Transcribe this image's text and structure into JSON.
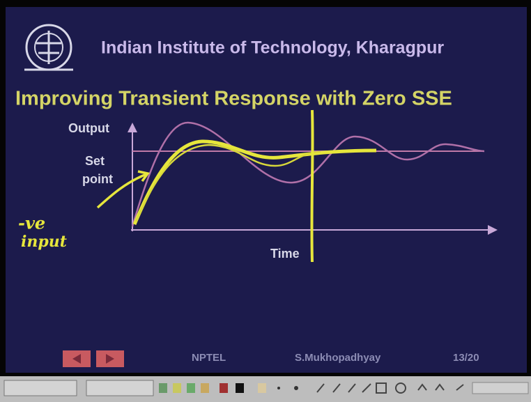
{
  "header": {
    "title": "Indian Institute of Technology, Kharagpur"
  },
  "slide": {
    "title": "Improving Transient Response with Zero SSE",
    "y_axis_label": "Output",
    "set_point_label": [
      "Set",
      "point"
    ],
    "x_axis_label": "Time",
    "annotation": [
      "-ve",
      "input"
    ]
  },
  "footer": {
    "source": "NPTEL",
    "author": "S.Mukhopadhyay",
    "page": "13/20"
  }
}
